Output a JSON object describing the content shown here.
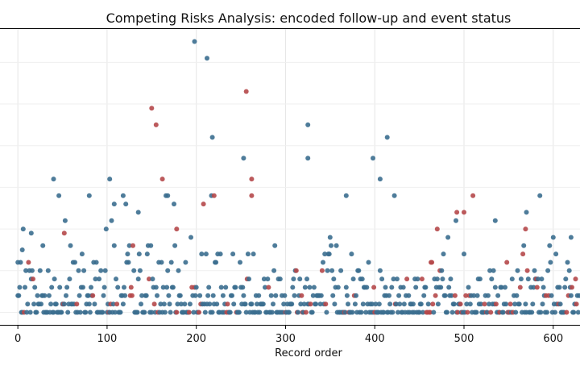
{
  "chart_data": {
    "type": "scatter",
    "title": "Competing Risks Analysis: encoded follow-up and event status",
    "xlabel": "Record order",
    "ylabel": "",
    "xlim": [
      -20,
      630
    ],
    "ylim": [
      -0.3,
      6.8
    ],
    "xticks": [
      0,
      100,
      200,
      300,
      400,
      500,
      600
    ],
    "grid": true,
    "legend": "none",
    "status_colors": {
      "censored": "#3b6e8f",
      "event": "#b5484a"
    },
    "point_counts": {
      "censored": 540,
      "event": 90,
      "total": 630
    },
    "points": [
      {
        "x": 0,
        "y": 1.2,
        "status": "censored"
      },
      {
        "x": 5,
        "y": 1.5,
        "status": "censored"
      },
      {
        "x": 15,
        "y": 1.9,
        "status": "censored"
      },
      {
        "x": 28,
        "y": 1.6,
        "status": "censored"
      },
      {
        "x": 40,
        "y": 3.2,
        "status": "censored"
      },
      {
        "x": 46,
        "y": 2.8,
        "status": "censored"
      },
      {
        "x": 52,
        "y": 1.9,
        "status": "event"
      },
      {
        "x": 80,
        "y": 2.8,
        "status": "censored"
      },
      {
        "x": 103,
        "y": 3.2,
        "status": "censored"
      },
      {
        "x": 108,
        "y": 1.6,
        "status": "censored"
      },
      {
        "x": 118,
        "y": 2.8,
        "status": "censored"
      },
      {
        "x": 135,
        "y": 2.4,
        "status": "censored"
      },
      {
        "x": 150,
        "y": 4.9,
        "status": "event"
      },
      {
        "x": 155,
        "y": 4.5,
        "status": "event"
      },
      {
        "x": 162,
        "y": 3.2,
        "status": "event"
      },
      {
        "x": 168,
        "y": 2.8,
        "status": "censored"
      },
      {
        "x": 178,
        "y": 2.0,
        "status": "event"
      },
      {
        "x": 198,
        "y": 6.5,
        "status": "censored"
      },
      {
        "x": 212,
        "y": 6.1,
        "status": "censored"
      },
      {
        "x": 218,
        "y": 4.2,
        "status": "censored"
      },
      {
        "x": 220,
        "y": 2.8,
        "status": "event"
      },
      {
        "x": 256,
        "y": 5.3,
        "status": "event"
      },
      {
        "x": 253,
        "y": 3.7,
        "status": "censored"
      },
      {
        "x": 262,
        "y": 3.2,
        "status": "event"
      },
      {
        "x": 262,
        "y": 2.8,
        "status": "event"
      },
      {
        "x": 325,
        "y": 4.5,
        "status": "censored"
      },
      {
        "x": 325,
        "y": 3.7,
        "status": "censored"
      },
      {
        "x": 368,
        "y": 2.8,
        "status": "censored"
      },
      {
        "x": 398,
        "y": 3.7,
        "status": "censored"
      },
      {
        "x": 414,
        "y": 4.2,
        "status": "censored"
      },
      {
        "x": 406,
        "y": 3.2,
        "status": "censored"
      },
      {
        "x": 470,
        "y": 2.0,
        "status": "event"
      },
      {
        "x": 492,
        "y": 2.4,
        "status": "event"
      },
      {
        "x": 500,
        "y": 2.4,
        "status": "event"
      },
      {
        "x": 535,
        "y": 2.2,
        "status": "censored"
      },
      {
        "x": 570,
        "y": 2.4,
        "status": "censored"
      },
      {
        "x": 569,
        "y": 2.0,
        "status": "event"
      },
      {
        "x": 620,
        "y": 1.8,
        "status": "censored"
      }
    ]
  }
}
